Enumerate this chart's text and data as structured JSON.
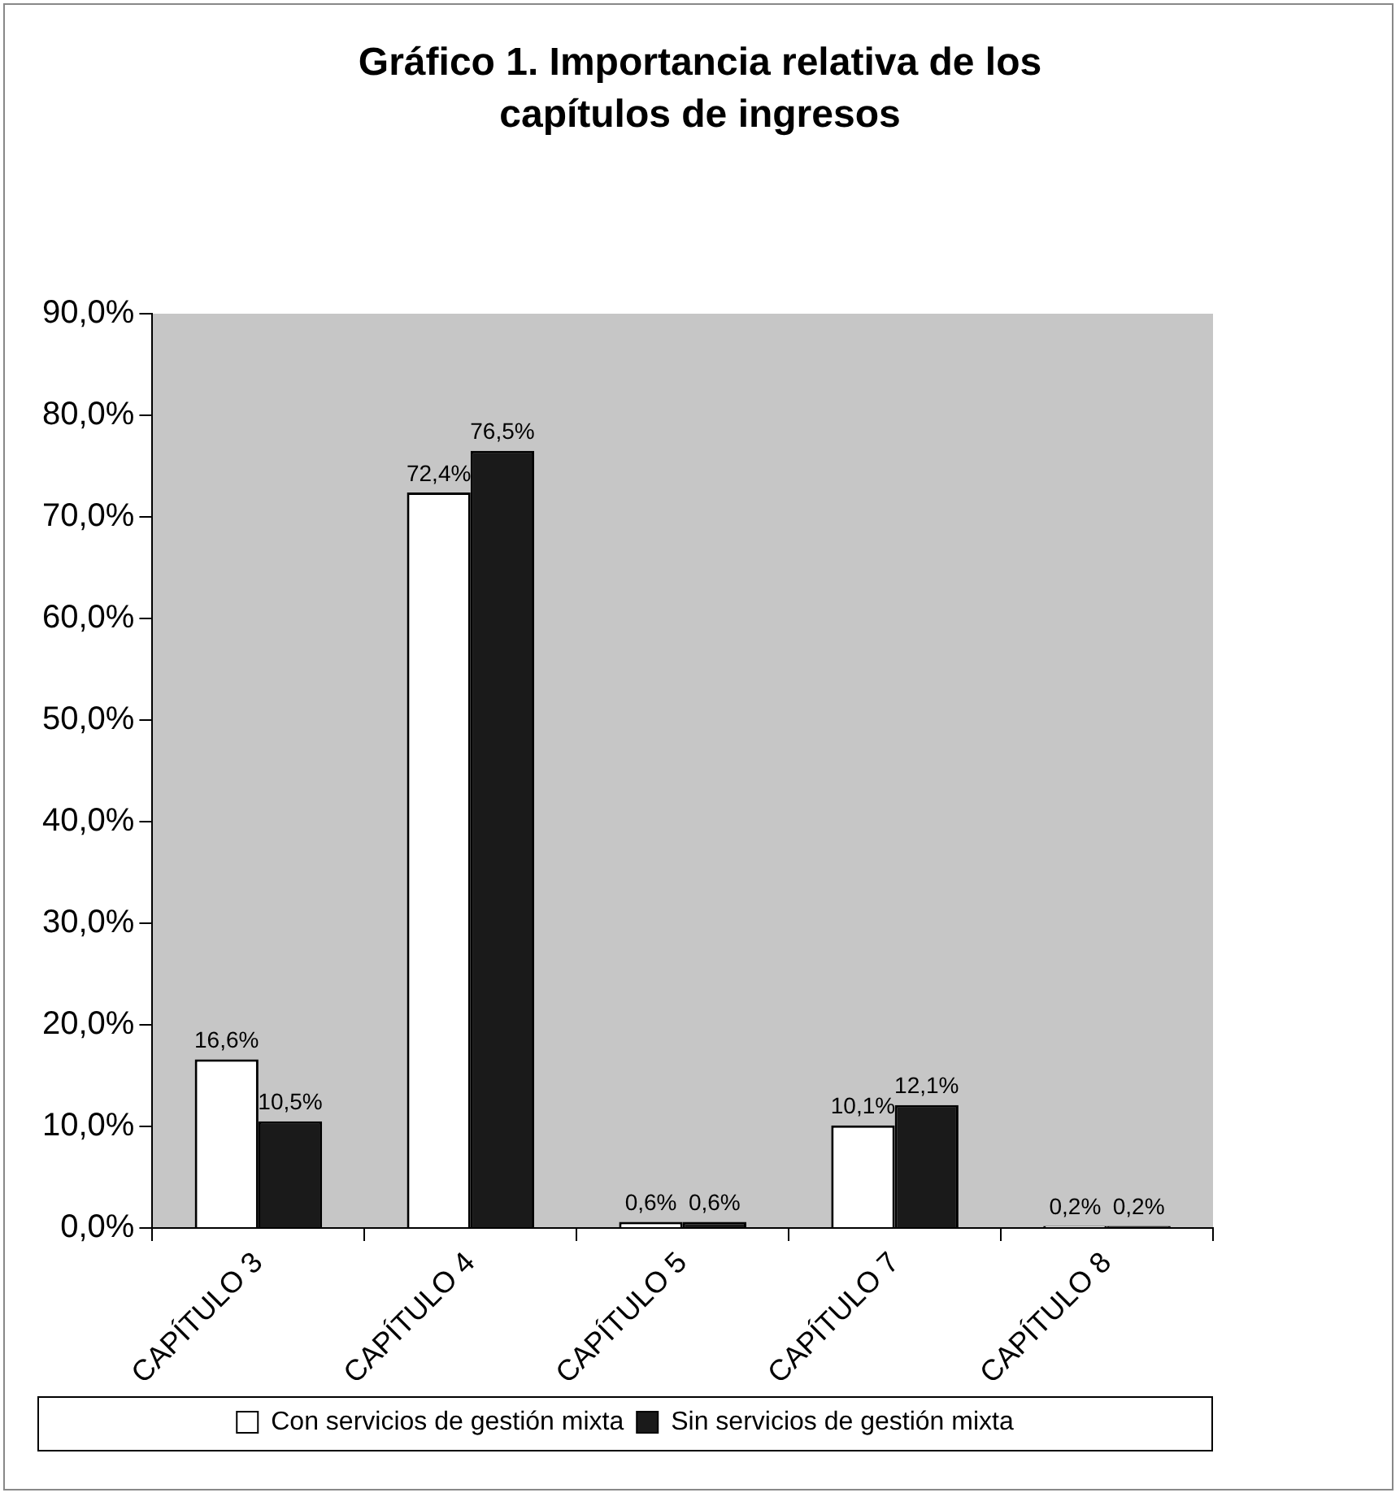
{
  "chart_data": {
    "type": "bar",
    "title": "Gráfico 1. Importancia relativa de los capítulos de ingresos",
    "categories": [
      "CAPÍTULO 3",
      "CAPÍTULO 4",
      "CAPÍTULO 5",
      "CAPÍTULO 7",
      "CAPÍTULO 8"
    ],
    "series": [
      {
        "name": "Con servicios de gestión mixta",
        "color": "#ffffff",
        "values": [
          16.6,
          72.4,
          0.6,
          10.1,
          0.2
        ],
        "value_labels": [
          "16,6%",
          "72,4%",
          "0,6%",
          "10,1%",
          "0,2%"
        ]
      },
      {
        "name": "Sin servicios de gestión mixta",
        "color": "#1a1a1a",
        "values": [
          10.5,
          76.5,
          0.6,
          12.1,
          0.2
        ],
        "value_labels": [
          "10,5%",
          "76,5%",
          "0,6%",
          "12,1%",
          "0,2%"
        ]
      }
    ],
    "ylim": [
      0,
      90
    ],
    "yticks": [
      {
        "value": 0,
        "label": "0,0%"
      },
      {
        "value": 10,
        "label": "10,0%"
      },
      {
        "value": 20,
        "label": "20,0%"
      },
      {
        "value": 30,
        "label": "30,0%"
      },
      {
        "value": 40,
        "label": "40,0%"
      },
      {
        "value": 50,
        "label": "50,0%"
      },
      {
        "value": 60,
        "label": "60,0%"
      },
      {
        "value": 70,
        "label": "70,0%"
      },
      {
        "value": 80,
        "label": "80,0%"
      },
      {
        "value": 90,
        "label": "90,0%"
      }
    ],
    "grid": false,
    "legend": "bottom"
  }
}
